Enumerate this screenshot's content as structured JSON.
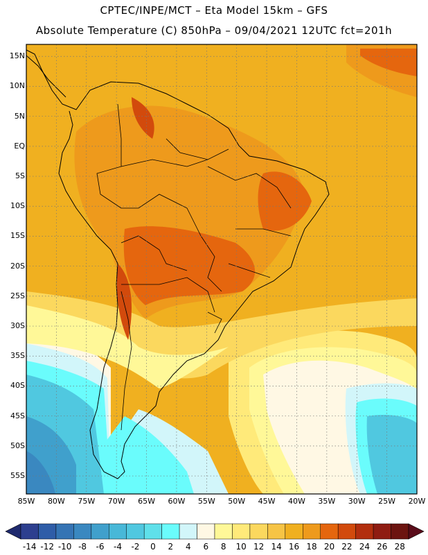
{
  "header": {
    "line1": "CPTEC/INPE/MCT –  Eta Model 15km – GFS",
    "line2": "Absolute Temperature (C) 850hPa – 09/04/2021 12UTC fct=201h"
  },
  "map": {
    "lon_range": [
      -85,
      -20
    ],
    "lat_range": [
      -58,
      17
    ],
    "lat_labels": [
      {
        "value": 15,
        "text": "15N"
      },
      {
        "value": 10,
        "text": "10N"
      },
      {
        "value": 5,
        "text": "5N"
      },
      {
        "value": 0,
        "text": "EQ"
      },
      {
        "value": -5,
        "text": "5S"
      },
      {
        "value": -10,
        "text": "10S"
      },
      {
        "value": -15,
        "text": "15S"
      },
      {
        "value": -20,
        "text": "20S"
      },
      {
        "value": -25,
        "text": "25S"
      },
      {
        "value": -30,
        "text": "30S"
      },
      {
        "value": -35,
        "text": "35S"
      },
      {
        "value": -40,
        "text": "40S"
      },
      {
        "value": -45,
        "text": "45S"
      },
      {
        "value": -50,
        "text": "50S"
      },
      {
        "value": -55,
        "text": "55S"
      }
    ],
    "lon_labels": [
      {
        "value": -85,
        "text": "85W"
      },
      {
        "value": -80,
        "text": "80W"
      },
      {
        "value": -75,
        "text": "75W"
      },
      {
        "value": -70,
        "text": "70W"
      },
      {
        "value": -65,
        "text": "65W"
      },
      {
        "value": -60,
        "text": "60W"
      },
      {
        "value": -55,
        "text": "55W"
      },
      {
        "value": -50,
        "text": "50W"
      },
      {
        "value": -45,
        "text": "45W"
      },
      {
        "value": -40,
        "text": "40W"
      },
      {
        "value": -35,
        "text": "35W"
      },
      {
        "value": -30,
        "text": "30W"
      },
      {
        "value": -25,
        "text": "25W"
      },
      {
        "value": -20,
        "text": "20W"
      }
    ]
  },
  "colorbar": {
    "colors": [
      "#2d3f8f",
      "#2f5da8",
      "#3574b4",
      "#3a88c0",
      "#40a0cc",
      "#48b8d8",
      "#50c8e0",
      "#5fe0ea",
      "#6afcfc",
      "#d2f6fa",
      "#fff8e4",
      "#fff898",
      "#ffea7a",
      "#fbd85e",
      "#f6c445",
      "#f0b020",
      "#ee9a1c",
      "#e5660e",
      "#d24a0c",
      "#b22e0e",
      "#8f1c12",
      "#6c1410"
    ],
    "labels": [
      "-14",
      "-12",
      "-10",
      "-8",
      "-6",
      "-4",
      "-2",
      "0",
      "2",
      "4",
      "6",
      "8",
      "10",
      "12",
      "14",
      "16",
      "18",
      "20",
      "22",
      "24",
      "26",
      "28"
    ]
  }
}
